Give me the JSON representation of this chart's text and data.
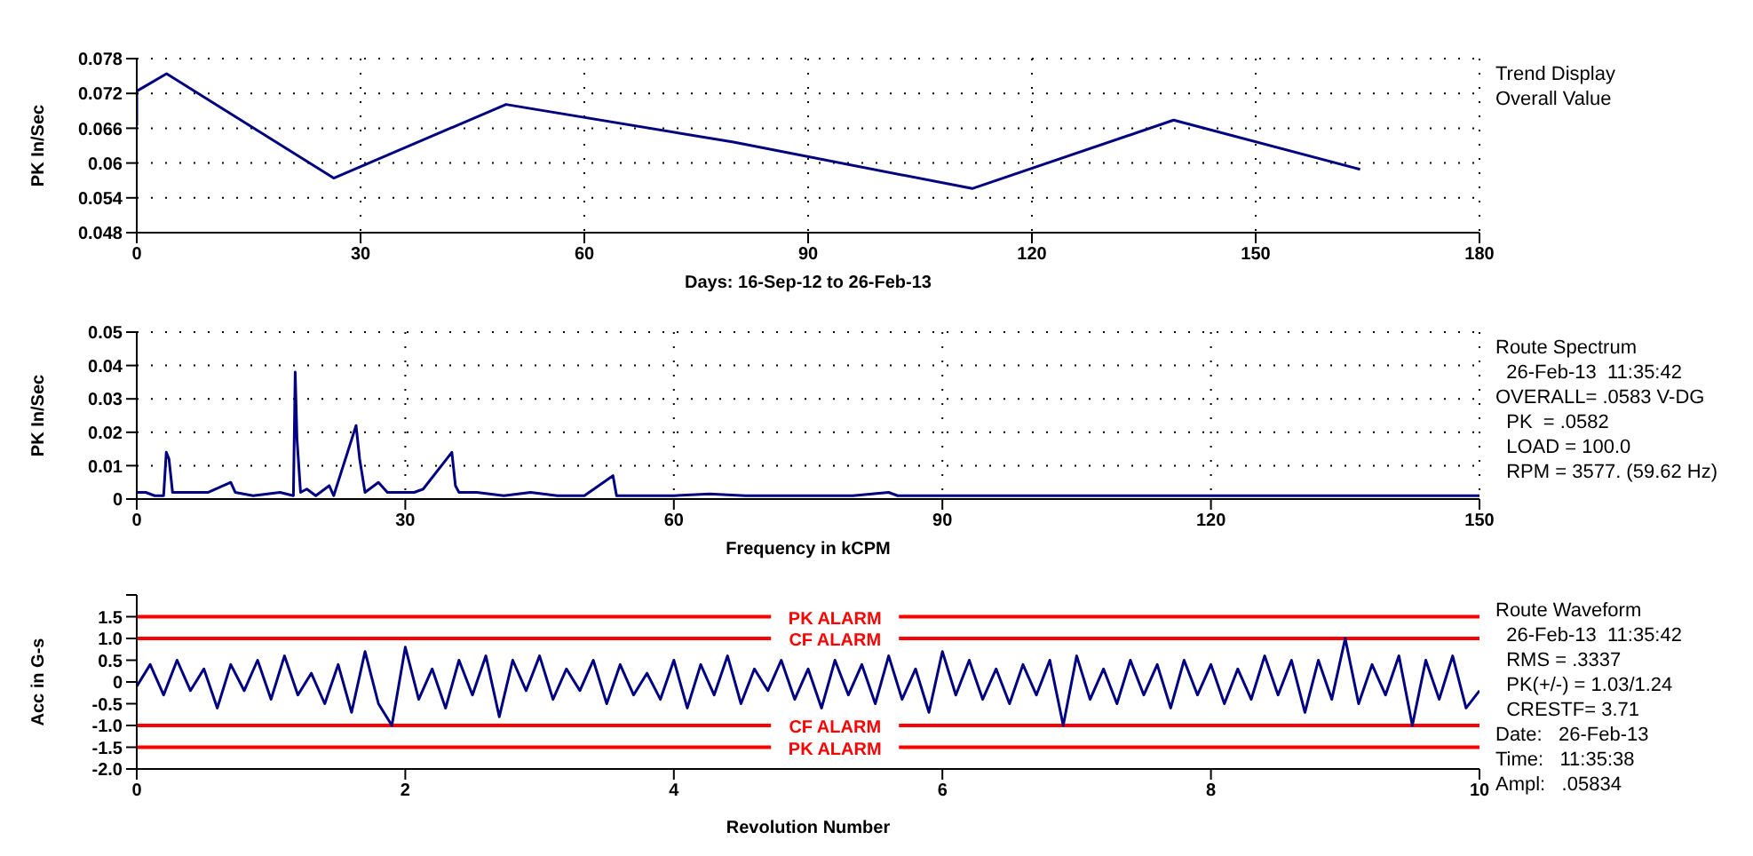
{
  "chart_data": [
    {
      "type": "line",
      "xlabel": "Days:  16-Sep-12  to  26-Feb-13",
      "ylabel": "PK In/Sec",
      "xlim": [
        0,
        180
      ],
      "xticks": [
        0,
        30,
        60,
        90,
        120,
        150,
        180
      ],
      "ylim": [
        0.048,
        0.078
      ],
      "yticks": [
        0.048,
        0.054,
        0.06,
        0.066,
        0.072,
        0.078
      ],
      "grid": true,
      "series": [
        {
          "color": "#000080",
          "x": [
            0,
            0,
            4,
            26.4,
            49.5,
            80,
            112,
            139,
            164
          ],
          "values": [
            0.0665,
            0.0724,
            0.0754,
            0.0574,
            0.0701,
            0.0636,
            0.0556,
            0.0674,
            0.0589
          ]
        }
      ],
      "annotations": [
        "Trend Display",
        "Overall Value"
      ]
    },
    {
      "type": "line",
      "xlabel": "Frequency in kCPM",
      "ylabel": "PK In/Sec",
      "xlim": [
        0,
        150
      ],
      "xticks": [
        0,
        30,
        60,
        90,
        120,
        150
      ],
      "ylim": [
        0,
        0.05
      ],
      "yticks": [
        0,
        0.01,
        0.02,
        0.03,
        0.04,
        0.05
      ],
      "grid": true,
      "series": [
        {
          "color": "#000080",
          "x": [
            0,
            1,
            2,
            3,
            3.3,
            3.6,
            4,
            5,
            8,
            10.5,
            11,
            13,
            16,
            17.5,
            17.7,
            17.9,
            18.3,
            19,
            20,
            21.5,
            22,
            24.5,
            24.9,
            25.5,
            27,
            28,
            31,
            32,
            35.2,
            35.6,
            36,
            38,
            41,
            44,
            47,
            50,
            53.2,
            53.6,
            60,
            64,
            68,
            80,
            84,
            85,
            98,
            110,
            120,
            150
          ],
          "values": [
            0.002,
            0.002,
            0.001,
            0.001,
            0.014,
            0.012,
            0.002,
            0.002,
            0.002,
            0.005,
            0.002,
            0.001,
            0.002,
            0.001,
            0.038,
            0.018,
            0.002,
            0.003,
            0.001,
            0.004,
            0.001,
            0.022,
            0.012,
            0.002,
            0.005,
            0.002,
            0.002,
            0.003,
            0.014,
            0.004,
            0.002,
            0.002,
            0.001,
            0.002,
            0.001,
            0.001,
            0.007,
            0.001,
            0.001,
            0.0015,
            0.001,
            0.001,
            0.002,
            0.001,
            0.001,
            0.001,
            0.001,
            0.001
          ]
        }
      ],
      "annotations": [
        "Route Spectrum",
        "  26-Feb-13  11:35:42",
        "OVERALL= .0583 V-DG",
        "  PK  = .0582",
        "  LOAD = 100.0",
        "  RPM = 3577. (59.62 Hz)"
      ]
    },
    {
      "type": "line",
      "xlabel": "Revolution Number",
      "ylabel": "Acc in G-s",
      "xlim": [
        0,
        10
      ],
      "xticks": [
        0,
        2,
        4,
        6,
        8,
        10
      ],
      "ylim": [
        -2,
        2
      ],
      "yticks": [
        {
          "value": -2,
          "label": "-2.0"
        },
        {
          "value": -1.5,
          "label": "-1.5"
        },
        {
          "value": -1,
          "label": "-1.0"
        },
        {
          "value": -0.5,
          "label": "-0.5"
        },
        0,
        {
          "value": 0.5,
          "label": "0.5"
        },
        {
          "value": 1,
          "label": "1.0"
        },
        {
          "value": 1.5,
          "label": "1.5"
        },
        {
          "value": 2,
          "label": null
        }
      ],
      "series": [
        {
          "color": "#000080",
          "x": [
            0,
            0.1,
            0.2,
            0.3,
            0.4,
            0.5,
            0.6,
            0.7,
            0.8,
            0.9,
            1,
            1.1,
            1.2,
            1.3,
            1.4,
            1.5,
            1.6,
            1.7,
            1.8,
            1.9,
            2,
            2.1,
            2.2,
            2.3,
            2.4,
            2.5,
            2.6,
            2.7,
            2.8,
            2.9,
            3,
            3.1,
            3.2,
            3.3,
            3.4,
            3.5,
            3.6,
            3.7,
            3.8,
            3.9,
            4,
            4.1,
            4.2,
            4.3,
            4.4,
            4.5,
            4.6,
            4.7,
            4.8,
            4.9,
            5,
            5.1,
            5.2,
            5.3,
            5.4,
            5.5,
            5.6,
            5.7,
            5.8,
            5.9,
            6,
            6.1,
            6.2,
            6.3,
            6.4,
            6.5,
            6.6,
            6.7,
            6.8,
            6.9,
            7,
            7.1,
            7.2,
            7.3,
            7.4,
            7.5,
            7.6,
            7.7,
            7.8,
            7.9,
            8,
            8.1,
            8.2,
            8.3,
            8.4,
            8.5,
            8.6,
            8.7,
            8.8,
            8.9,
            9,
            9.1,
            9.2,
            9.3,
            9.4,
            9.5,
            9.6,
            9.7,
            9.8,
            9.9,
            10
          ],
          "values": [
            -0.1,
            0.4,
            -0.3,
            0.5,
            -0.2,
            0.3,
            -0.6,
            0.4,
            -0.2,
            0.5,
            -0.4,
            0.6,
            -0.3,
            0.2,
            -0.5,
            0.4,
            -0.7,
            0.7,
            -0.5,
            -1.0,
            0.8,
            -0.4,
            0.3,
            -0.6,
            0.5,
            -0.3,
            0.6,
            -0.8,
            0.5,
            -0.2,
            0.6,
            -0.4,
            0.3,
            -0.2,
            0.5,
            -0.5,
            0.4,
            -0.3,
            0.2,
            -0.4,
            0.5,
            -0.6,
            0.4,
            -0.3,
            0.6,
            -0.5,
            0.3,
            -0.2,
            0.5,
            -0.4,
            0.3,
            -0.6,
            0.5,
            -0.3,
            0.4,
            -0.5,
            0.6,
            -0.4,
            0.3,
            -0.7,
            0.7,
            -0.3,
            0.5,
            -0.4,
            0.3,
            -0.5,
            0.4,
            -0.3,
            0.5,
            -1.0,
            0.6,
            -0.4,
            0.3,
            -0.5,
            0.5,
            -0.3,
            0.4,
            -0.6,
            0.5,
            -0.3,
            0.4,
            -0.5,
            0.3,
            -0.4,
            0.6,
            -0.3,
            0.5,
            -0.7,
            0.5,
            -0.4,
            1.0,
            -0.5,
            0.4,
            -0.3,
            0.6,
            -1.0,
            0.5,
            -0.4,
            0.6,
            -0.6,
            -0.2
          ]
        }
      ],
      "ref_lines": [
        {
          "axis": "y",
          "value": 1.5,
          "label": "PK ALARM",
          "color": "#ff0000"
        },
        {
          "axis": "y",
          "value": 1,
          "label": "CF ALARM",
          "color": "#ff0000"
        },
        {
          "axis": "y",
          "value": -1,
          "label": "CF ALARM",
          "color": "#ff0000"
        },
        {
          "axis": "y",
          "value": -1.5,
          "label": "PK ALARM",
          "color": "#ff0000"
        }
      ],
      "annotations": [
        "Route Waveform",
        "  26-Feb-13  11:35:42",
        "  RMS = .3337",
        "  PK(+/-) = 1.03/1.24",
        "  CRESTF= 3.71",
        "Date:   26-Feb-13",
        "Time:   11:35:38",
        "Ampl:   .05834"
      ]
    }
  ]
}
